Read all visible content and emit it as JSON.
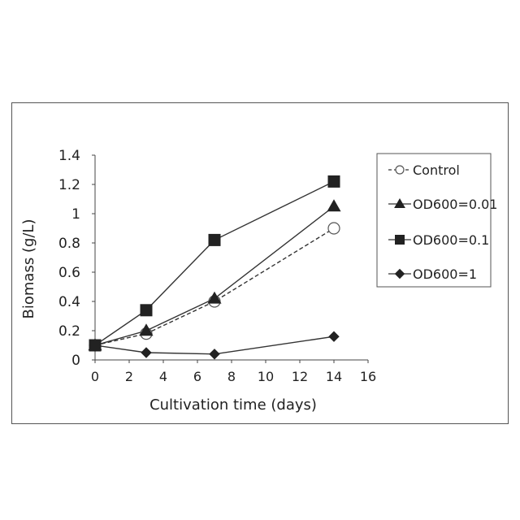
{
  "chart_data": {
    "type": "line",
    "title": "",
    "xlabel": "Cultivation time (days)",
    "ylabel": "Biomass (g/L)",
    "xlim": [
      0,
      16
    ],
    "ylim": [
      0,
      1.4
    ],
    "xticks": [
      "0",
      "2",
      "4",
      "6",
      "8",
      "10",
      "12",
      "14",
      "16"
    ],
    "yticks": [
      "0",
      "0.2",
      "0.4",
      "0.6",
      "0.8",
      "1",
      "1.2",
      "1.4"
    ],
    "grid": false,
    "legend_position": "right",
    "series": [
      {
        "name": "Control",
        "marker": "circle-open",
        "dashed": true,
        "color": "#333333",
        "x": [
          0,
          3,
          7,
          14
        ],
        "y": [
          0.1,
          0.18,
          0.4,
          0.9
        ]
      },
      {
        "name": "OD600=0.01",
        "marker": "triangle",
        "dashed": false,
        "color": "#333333",
        "x": [
          0,
          3,
          7,
          14
        ],
        "y": [
          0.1,
          0.2,
          0.42,
          1.05
        ]
      },
      {
        "name": "OD600=0.1",
        "marker": "square",
        "dashed": false,
        "color": "#333333",
        "x": [
          0,
          3,
          7,
          14
        ],
        "y": [
          0.1,
          0.34,
          0.82,
          1.22
        ]
      },
      {
        "name": "OD600=1",
        "marker": "diamond",
        "dashed": false,
        "color": "#333333",
        "x": [
          0,
          3,
          7,
          14
        ],
        "y": [
          0.1,
          0.05,
          0.04,
          0.16
        ]
      }
    ]
  }
}
